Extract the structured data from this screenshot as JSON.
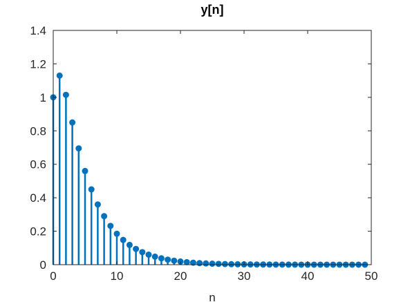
{
  "chart_data": {
    "type": "stem",
    "title": "y[n]",
    "xlabel": "n",
    "ylabel": "",
    "xlim": [
      0,
      50
    ],
    "ylim": [
      0,
      1.4
    ],
    "xticks": [
      "0",
      "10",
      "20",
      "30",
      "40",
      "50"
    ],
    "yticks": [
      "0",
      "0.2",
      "0.4",
      "0.6",
      "0.8",
      "1",
      "1.2",
      "1.4"
    ],
    "grid": false,
    "color": "#0072BD",
    "x": [
      0,
      1,
      2,
      3,
      4,
      5,
      6,
      7,
      8,
      9,
      10,
      11,
      12,
      13,
      14,
      15,
      16,
      17,
      18,
      19,
      20,
      21,
      22,
      23,
      24,
      25,
      26,
      27,
      28,
      29,
      30,
      31,
      32,
      33,
      34,
      35,
      36,
      37,
      38,
      39,
      40,
      41,
      42,
      43,
      44,
      45,
      46,
      47,
      48,
      49
    ],
    "y": [
      1.0,
      1.13,
      1.015,
      0.85,
      0.695,
      0.56,
      0.45,
      0.36,
      0.29,
      0.232,
      0.185,
      0.148,
      0.118,
      0.094,
      0.075,
      0.06,
      0.048,
      0.038,
      0.03,
      0.024,
      0.019,
      0.015,
      0.012,
      0.0095,
      0.0076,
      0.006,
      0.0048,
      0.0038,
      0.003,
      0.0024,
      0.0019,
      0.0015,
      0.0012,
      0.001,
      0.0008,
      0.0006,
      0.0005,
      0.0004,
      0.0003,
      0.00025,
      0.0002,
      0.00016,
      0.00013,
      0.0001,
      8e-05,
      6e-05,
      5e-05,
      4e-05,
      3e-05,
      2e-05
    ]
  }
}
